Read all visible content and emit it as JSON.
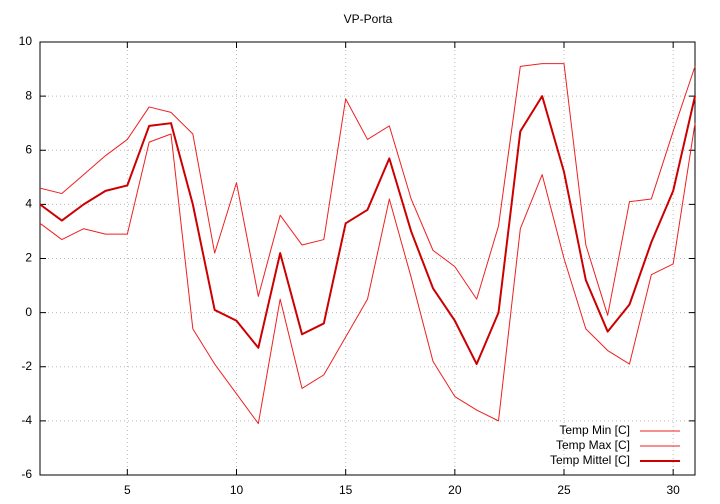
{
  "chart_data": {
    "type": "line",
    "title": "VP-Porta",
    "x": [
      1,
      2,
      3,
      4,
      5,
      6,
      7,
      8,
      9,
      10,
      11,
      12,
      13,
      14,
      15,
      16,
      17,
      18,
      19,
      20,
      21,
      22,
      23,
      24,
      25,
      26,
      27,
      28,
      29,
      30,
      31
    ],
    "series": [
      {
        "name": "Temp Min [C]",
        "color": "#ee2020",
        "width": 1,
        "values": [
          3.3,
          2.7,
          3.1,
          2.9,
          2.9,
          6.3,
          6.6,
          -0.6,
          -1.9,
          -3.0,
          -4.1,
          0.5,
          -2.8,
          -2.3,
          -0.9,
          0.5,
          4.2,
          1.3,
          -1.8,
          -3.1,
          -3.6,
          -4.0,
          3.1,
          5.1,
          2.0,
          -0.6,
          -1.4,
          -1.9,
          1.4,
          1.8,
          7.0
        ]
      },
      {
        "name": "Temp Max [C]",
        "color": "#ee2020",
        "width": 1,
        "values": [
          4.6,
          4.4,
          5.1,
          5.8,
          6.4,
          7.6,
          7.4,
          6.6,
          2.2,
          4.8,
          0.6,
          3.6,
          2.5,
          2.7,
          7.9,
          6.4,
          6.9,
          4.2,
          2.3,
          1.7,
          0.5,
          3.2,
          9.1,
          9.2,
          9.2,
          2.5,
          -0.1,
          4.1,
          4.2,
          6.7,
          9.1
        ]
      },
      {
        "name": "Temp Mittel [C]",
        "color": "#cc0000",
        "width": 2,
        "values": [
          4.0,
          3.4,
          4.0,
          4.5,
          4.7,
          6.9,
          7.0,
          4.0,
          0.1,
          -0.3,
          -1.3,
          2.2,
          -0.8,
          -0.4,
          3.3,
          3.8,
          5.7,
          3.0,
          0.9,
          -0.3,
          -1.9,
          0.0,
          6.7,
          8.0,
          5.2,
          1.2,
          -0.7,
          0.3,
          2.6,
          4.5,
          8.0
        ]
      }
    ],
    "xlim": [
      1,
      31
    ],
    "xticks": [
      5,
      10,
      15,
      20,
      25,
      30
    ],
    "ylim": [
      -6,
      10
    ],
    "yticks": [
      -6,
      -4,
      -2,
      0,
      2,
      4,
      6,
      8,
      10
    ],
    "grid": true,
    "legend": "bottom-right"
  }
}
